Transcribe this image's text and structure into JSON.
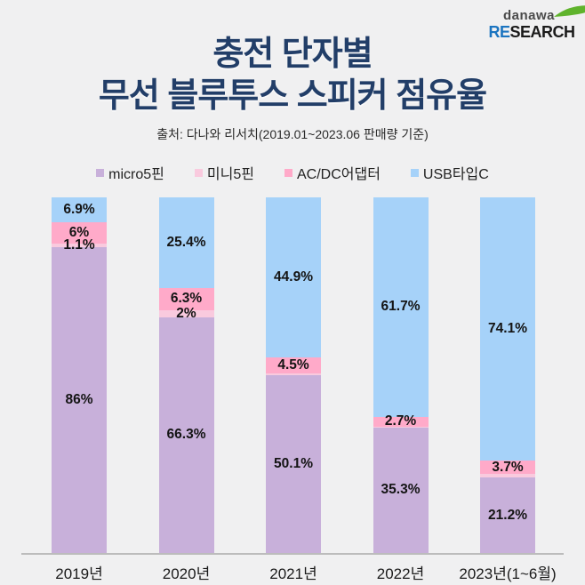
{
  "page": {
    "background": "#f0f0f1"
  },
  "logo": {
    "brand": "danawa",
    "brand_color": "#4a4a4a",
    "research_prefix": "RE",
    "research_prefix_color": "#1b74c0",
    "research_suffix": "SEARCH",
    "research_suffix_color": "#1a1a1a",
    "swoosh_color": "#5fb32c"
  },
  "header": {
    "title_line1": "충전 단자별",
    "title_line2": "무선 블루투스 스피커 점유율",
    "title_color": "#223e68",
    "subtitle": "출처: 다나와 리서치(2019.01~2023.06 판매량 기준)"
  },
  "chart_data": {
    "type": "bar",
    "stacked": true,
    "value_unit": "%",
    "ylim": [
      0,
      100
    ],
    "grid": false,
    "legend_position": "top",
    "categories": [
      "2019년",
      "2020년",
      "2021년",
      "2022년",
      "2023년(1~6월)"
    ],
    "stack_order_bottom_to_top": [
      "micro5핀",
      "미니5핀",
      "AC/DC어댑터",
      "USB타입C"
    ],
    "series": [
      {
        "name": "micro5핀",
        "color": "#c8b0da",
        "values": [
          86,
          66.3,
          50.1,
          35.3,
          21.2
        ],
        "labels": [
          "86%",
          "66.3%",
          "50.1%",
          "35.3%",
          "21.2%"
        ]
      },
      {
        "name": "미니5핀",
        "color": "#f9cade",
        "values": [
          1.1,
          2,
          0.5,
          0.3,
          1
        ],
        "labels": [
          "1.1%",
          "2%",
          "",
          "",
          ""
        ]
      },
      {
        "name": "AC/DC어댑터",
        "color": "#ffaac9",
        "values": [
          6,
          6.3,
          4.5,
          2.7,
          3.7
        ],
        "labels": [
          "6%",
          "6.3%",
          "4.5%",
          "2.7%",
          "3.7%"
        ]
      },
      {
        "name": "USB타입C",
        "color": "#a6d2f9",
        "values": [
          6.9,
          25.4,
          44.9,
          61.7,
          74.1
        ],
        "labels": [
          "6.9%",
          "25.4%",
          "44.9%",
          "61.7%",
          "74.1%"
        ]
      }
    ],
    "axis_line_color": "#bcbcbc"
  }
}
